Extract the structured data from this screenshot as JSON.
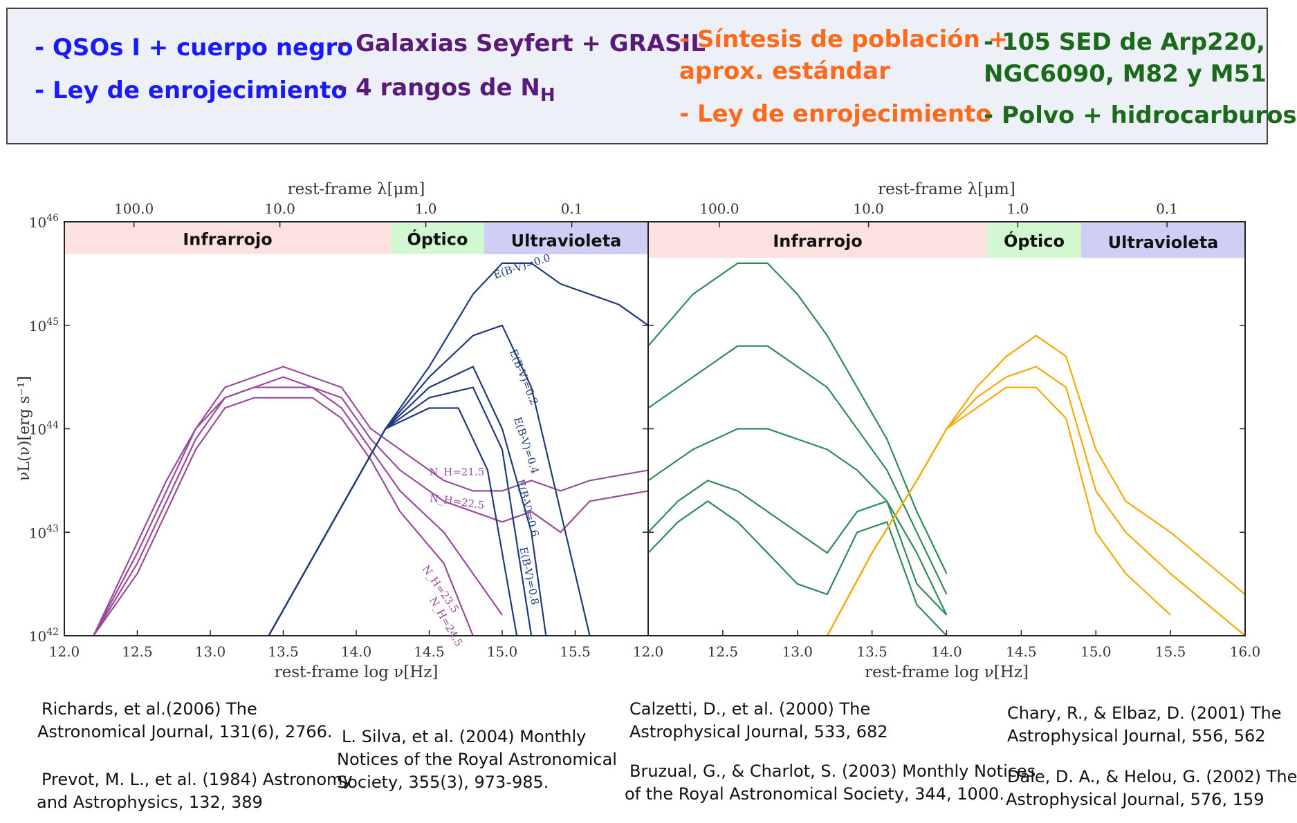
{
  "legend": {
    "col1": {
      "color": "#1a1aff",
      "lines": [
        "- QSOs I + cuerpo negro",
        "- Ley de enrojecimiento"
      ]
    },
    "col2": {
      "color": "#5a1a7a",
      "line1": "- Galaxias Seyfert + GRASIL",
      "line2": "- 4 rangos de N",
      "line2_sub": "H"
    },
    "col3": {
      "color": "#ff6a1a",
      "lines": [
        "- Síntesis de población +",
        "aprox. estándar",
        "- Ley de enrojecimiento"
      ]
    },
    "col4": {
      "color": "#1a6a1a",
      "lines": [
        "- 105 SED de Arp220,",
        "NGC6090, M82 y M51",
        "- Polvo + hidrocarburos"
      ]
    }
  },
  "references": {
    "richards": [
      "Richards, et al.(2006) The",
      "Astronomical Journal, 131(6), 2766."
    ],
    "prevot": [
      "Prevot, M. L., et al. (1984) Astronomy",
      "and Astrophysics, 132, 389"
    ],
    "silva": [
      "L. Silva, et al. (2004) Monthly",
      "Notices of the Royal Astronomical",
      "Society, 355(3), 973-985."
    ],
    "calzetti": [
      "Calzetti, D., et al. (2000) The",
      "Astrophysical Journal, 533, 682"
    ],
    "bruzual": [
      "Bruzual, G., & Charlot, S. (2003) Monthly Notices",
      "of the Royal Astronomical Society, 344, 1000."
    ],
    "chary": [
      "Chary, R., & Elbaz, D. (2001) The",
      "Astrophysical Journal, 556, 562"
    ],
    "dale": [
      "Dale, D. A., & Helou, G. (2002) The",
      "Astrophysical Journal, 576, 159"
    ]
  },
  "axes": {
    "top_label_prefix": "rest-frame ",
    "top_label_math": "λ[μm]",
    "bottom_label_prefix": "rest-frame ",
    "bottom_label_math": "log ν[Hz]",
    "y_label": "νL(ν)[erg s⁻¹]",
    "y_ticks_base": "10",
    "y_ticks_exp": [
      "42",
      "43",
      "44",
      "45",
      "46"
    ],
    "x_ticks": [
      "12.0",
      "12.5",
      "13.0",
      "13.5",
      "14.0",
      "14.5",
      "15.0",
      "15.5",
      "16.0"
    ],
    "top_ticks": [
      "100.0",
      "10.0",
      "1.0",
      "0.1"
    ]
  },
  "bands": {
    "infrared": {
      "label": "Infrarrojo",
      "color": "#fde0e0"
    },
    "optical": {
      "label": "Óptico",
      "color": "#d2f8d2"
    },
    "uv": {
      "label": "Ultravioleta",
      "color": "#cfcff5"
    }
  },
  "chart_data": [
    {
      "type": "line",
      "xlim": [
        12.0,
        16.0
      ],
      "ylim_log10": [
        42,
        46
      ],
      "x_scale": "linear (log ν)",
      "y_scale": "log",
      "top_axis_um": [
        100.0,
        10.0,
        1.0,
        0.1
      ],
      "series": [
        {
          "name": "N_H=21.5",
          "color": "#9a4a9a",
          "x": [
            12.2,
            12.5,
            12.7,
            12.9,
            13.1,
            13.3,
            13.5,
            13.7,
            13.9,
            14.1,
            14.3,
            14.6,
            14.8,
            15.0,
            15.2,
            15.4,
            15.6,
            16.0
          ],
          "y": [
            42.0,
            42.9,
            43.5,
            44.0,
            44.4,
            44.5,
            44.6,
            44.5,
            44.4,
            44.0,
            43.8,
            43.5,
            43.4,
            43.4,
            43.5,
            43.4,
            43.5,
            43.6
          ]
        },
        {
          "name": "N_H=22.5",
          "color": "#9a4a9a",
          "x": [
            12.2,
            12.5,
            12.7,
            12.9,
            13.1,
            13.3,
            13.5,
            13.7,
            13.9,
            14.1,
            14.3,
            14.6,
            14.8,
            15.0,
            15.2,
            15.4,
            15.6,
            16.0
          ],
          "y": [
            42.0,
            42.8,
            43.4,
            44.0,
            44.3,
            44.4,
            44.5,
            44.4,
            44.3,
            43.9,
            43.6,
            43.3,
            43.2,
            43.1,
            43.2,
            43.0,
            43.3,
            43.4
          ]
        },
        {
          "name": "N_H=23.5",
          "color": "#9a4a9a",
          "x": [
            12.2,
            12.5,
            12.7,
            12.9,
            13.1,
            13.3,
            13.5,
            13.7,
            13.9,
            14.1,
            14.3,
            14.6,
            14.8,
            15.0
          ],
          "y": [
            42.0,
            42.7,
            43.3,
            43.9,
            44.3,
            44.4,
            44.4,
            44.4,
            44.2,
            43.8,
            43.4,
            43.0,
            42.6,
            42.2
          ]
        },
        {
          "name": "N_H=24.5",
          "color": "#9a4a9a",
          "x": [
            12.2,
            12.5,
            12.7,
            12.9,
            13.1,
            13.3,
            13.5,
            13.7,
            13.9,
            14.1,
            14.3,
            14.6,
            14.8
          ],
          "y": [
            42.0,
            42.6,
            43.2,
            43.8,
            44.2,
            44.3,
            44.3,
            44.3,
            44.1,
            43.7,
            43.2,
            42.7,
            42.0
          ]
        },
        {
          "name": "E(B-V)=0.0",
          "color": "#1f3a7a",
          "x": [
            13.4,
            13.8,
            14.2,
            14.5,
            14.8,
            15.0,
            15.2,
            15.4,
            15.6,
            15.8,
            16.0
          ],
          "y": [
            42.0,
            43.0,
            44.0,
            44.6,
            45.3,
            45.6,
            45.6,
            45.4,
            45.3,
            45.2,
            45.0
          ]
        },
        {
          "name": "E(B-V)=0.2",
          "color": "#1f3a7a",
          "x": [
            13.4,
            13.8,
            14.2,
            14.5,
            14.8,
            15.0,
            15.2,
            15.4,
            15.6
          ],
          "y": [
            42.0,
            43.0,
            44.0,
            44.5,
            44.9,
            45.0,
            44.4,
            43.2,
            42.0
          ]
        },
        {
          "name": "E(B-V)=0.4",
          "color": "#1f3a7a",
          "x": [
            13.4,
            13.8,
            14.2,
            14.5,
            14.8,
            15.0,
            15.2,
            15.3
          ],
          "y": [
            42.0,
            43.0,
            44.0,
            44.4,
            44.6,
            44.0,
            43.0,
            42.0
          ]
        },
        {
          "name": "E(B-V)=0.6",
          "color": "#1f3a7a",
          "x": [
            13.4,
            13.8,
            14.2,
            14.5,
            14.8,
            15.0,
            15.2
          ],
          "y": [
            42.0,
            43.0,
            44.0,
            44.3,
            44.4,
            43.8,
            42.0
          ]
        },
        {
          "name": "E(B-V)=0.8",
          "color": "#1f3a7a",
          "x": [
            13.4,
            13.8,
            14.2,
            14.5,
            14.7,
            14.9,
            15.1
          ],
          "y": [
            42.0,
            43.0,
            44.0,
            44.2,
            44.2,
            43.6,
            42.0
          ]
        }
      ]
    },
    {
      "type": "line",
      "xlim": [
        12.0,
        16.0
      ],
      "ylim_log10": [
        42,
        46
      ],
      "x_scale": "linear (log ν)",
      "y_scale": "log",
      "top_axis_um": [
        100.0,
        10.0,
        1.0,
        0.1
      ],
      "series": [
        {
          "color": "#2e8b57",
          "x": [
            12.0,
            12.3,
            12.6,
            12.8,
            13.0,
            13.2,
            13.4,
            13.6,
            13.8,
            14.0
          ],
          "y": [
            44.8,
            45.3,
            45.6,
            45.6,
            45.3,
            44.9,
            44.4,
            43.9,
            43.2,
            42.6
          ]
        },
        {
          "color": "#2e8b57",
          "x": [
            12.0,
            12.3,
            12.6,
            12.8,
            13.0,
            13.2,
            13.4,
            13.6,
            13.8,
            14.0
          ],
          "y": [
            44.2,
            44.5,
            44.8,
            44.8,
            44.6,
            44.4,
            44.0,
            43.6,
            43.0,
            42.4
          ]
        },
        {
          "color": "#2e8b57",
          "x": [
            12.0,
            12.3,
            12.6,
            12.8,
            13.0,
            13.2,
            13.4,
            13.6,
            13.8,
            14.0
          ],
          "y": [
            43.5,
            43.8,
            44.0,
            44.0,
            43.9,
            43.8,
            43.6,
            43.3,
            42.8,
            42.2
          ]
        },
        {
          "color": "#2e8b57",
          "x": [
            12.0,
            12.2,
            12.4,
            12.6,
            12.8,
            13.0,
            13.2,
            13.4,
            13.6,
            13.8,
            14.0
          ],
          "y": [
            43.0,
            43.3,
            43.5,
            43.4,
            43.2,
            43.0,
            42.8,
            43.2,
            43.3,
            42.5,
            42.2
          ]
        },
        {
          "color": "#2e8b57",
          "x": [
            12.0,
            12.2,
            12.4,
            12.6,
            12.8,
            13.0,
            13.2,
            13.4,
            13.6,
            13.8,
            14.0
          ],
          "y": [
            42.8,
            43.1,
            43.3,
            43.1,
            42.8,
            42.5,
            42.4,
            43.0,
            43.1,
            42.3,
            42.0
          ]
        },
        {
          "color": "#f5a800",
          "x": [
            13.2,
            13.5,
            13.8,
            14.0,
            14.2,
            14.4,
            14.6,
            14.8,
            15.0,
            15.2,
            15.5,
            16.0
          ],
          "y": [
            42.0,
            42.8,
            43.5,
            44.0,
            44.4,
            44.7,
            44.9,
            44.7,
            43.8,
            43.3,
            43.0,
            42.4
          ]
        },
        {
          "color": "#f5a800",
          "x": [
            13.2,
            13.5,
            13.8,
            14.0,
            14.2,
            14.4,
            14.6,
            14.8,
            15.0,
            15.2,
            15.5,
            16.0
          ],
          "y": [
            42.0,
            42.8,
            43.5,
            44.0,
            44.3,
            44.5,
            44.6,
            44.4,
            43.4,
            43.0,
            42.6,
            42.0
          ]
        },
        {
          "color": "#f5a800",
          "x": [
            13.2,
            13.5,
            13.8,
            14.0,
            14.2,
            14.4,
            14.6,
            14.8,
            15.0,
            15.2,
            15.5
          ],
          "y": [
            42.0,
            42.8,
            43.5,
            44.0,
            44.2,
            44.4,
            44.4,
            44.1,
            43.0,
            42.6,
            42.2
          ]
        }
      ]
    }
  ]
}
